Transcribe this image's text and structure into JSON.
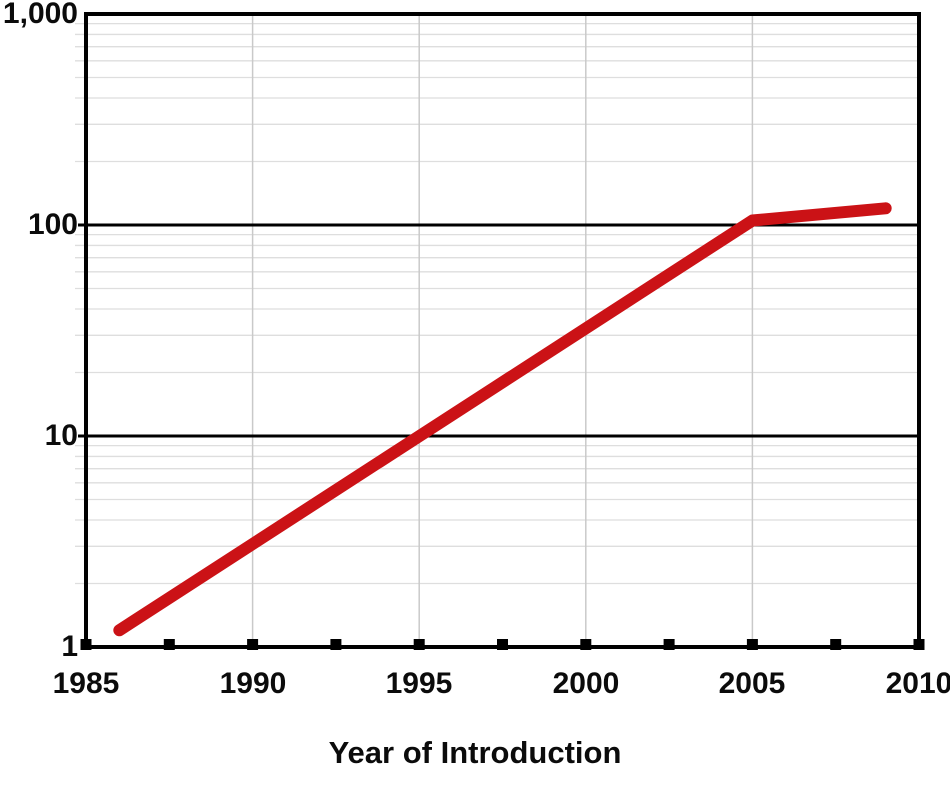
{
  "figure": {
    "background_color": "#ffffff",
    "text_color": "#0b0b0b"
  },
  "colors": {
    "axis_line": "#000000",
    "major_gridline": "#000000",
    "minor_gridline": "#dedede",
    "vertical_gridline": "#c9c9c9",
    "series_red": "#CB1216",
    "tick_square": "#000000"
  },
  "chart_data": {
    "type": "line",
    "title": "",
    "xlabel": "Year of Introduction",
    "ylabel": "",
    "x_axis": {
      "min": 1985,
      "max": 2010,
      "scale": "linear",
      "major_tick_step": 5,
      "minor_tick_step": 2.5
    },
    "y_axis": {
      "min": 1,
      "max": 1000,
      "scale": "log",
      "major_ticks": [
        1,
        10,
        100,
        1000
      ]
    },
    "x_tick_labels": [
      "1985",
      "1990",
      "1995",
      "2000",
      "2005",
      "2010"
    ],
    "y_tick_labels": [
      "1",
      "10",
      "100",
      "1,000"
    ],
    "gridlines": {
      "vertical_years": [
        1990,
        1995,
        2000,
        2005
      ],
      "horizontal_major_values": [
        10,
        100
      ],
      "horizontal_minor": "log decade subdivisions 2-9"
    },
    "legend": "none",
    "series": [
      {
        "name": "red-trend-line",
        "color": "#CB1216",
        "points": [
          {
            "year": 1986,
            "value": 1.2
          },
          {
            "year": 2005,
            "value": 105
          },
          {
            "year": 2009,
            "value": 120
          }
        ]
      }
    ]
  }
}
